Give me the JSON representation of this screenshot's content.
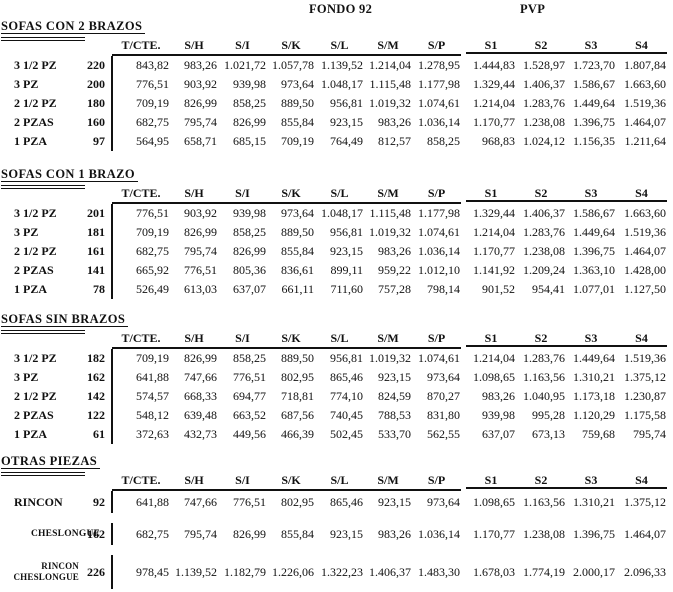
{
  "document": {
    "group_headers": {
      "fondo": "FONDO 92",
      "pvp": "PVP"
    },
    "columns": [
      "T/CTE.",
      "S/H",
      "S/I",
      "S/K",
      "S/L",
      "S/M",
      "S/P",
      "S1",
      "S2",
      "S3",
      "S4"
    ],
    "sections": [
      {
        "title": "SOFAS CON 2 BRAZOS",
        "rows": [
          {
            "label": "3 1/2 PZ",
            "size": "220",
            "values": [
              "843,82",
              "983,26",
              "1.021,72",
              "1.057,78",
              "1.139,52",
              "1.214,04",
              "1.278,95",
              "1.444,83",
              "1.528,97",
              "1.723,70",
              "1.807,84"
            ]
          },
          {
            "label": "3 PZ",
            "size": "200",
            "values": [
              "776,51",
              "903,92",
              "939,98",
              "973,64",
              "1.048,17",
              "1.115,48",
              "1.177,98",
              "1.329,44",
              "1.406,37",
              "1.586,67",
              "1.663,60"
            ]
          },
          {
            "label": "2 1/2 PZ",
            "size": "180",
            "values": [
              "709,19",
              "826,99",
              "858,25",
              "889,50",
              "956,81",
              "1.019,32",
              "1.074,61",
              "1.214,04",
              "1.283,76",
              "1.449,64",
              "1.519,36"
            ]
          },
          {
            "label": "2 PZAS",
            "size": "160",
            "values": [
              "682,75",
              "795,74",
              "826,99",
              "855,84",
              "923,15",
              "983,26",
              "1.036,14",
              "1.170,77",
              "1.238,08",
              "1.396,75",
              "1.464,07"
            ]
          },
          {
            "label": "1 PZA",
            "size": "97",
            "values": [
              "564,95",
              "658,71",
              "685,15",
              "709,19",
              "764,49",
              "812,57",
              "858,25",
              "968,83",
              "1.024,12",
              "1.156,35",
              "1.211,64"
            ]
          }
        ]
      },
      {
        "title": "SOFAS CON 1 BRAZO",
        "rows": [
          {
            "label": "3 1/2 PZ",
            "size": "201",
            "values": [
              "776,51",
              "903,92",
              "939,98",
              "973,64",
              "1.048,17",
              "1.115,48",
              "1.177,98",
              "1.329,44",
              "1.406,37",
              "1.586,67",
              "1.663,60"
            ]
          },
          {
            "label": "3 PZ",
            "size": "181",
            "values": [
              "709,19",
              "826,99",
              "858,25",
              "889,50",
              "956,81",
              "1.019,32",
              "1.074,61",
              "1.214,04",
              "1.283,76",
              "1.449,64",
              "1.519,36"
            ]
          },
          {
            "label": "2 1/2 PZ",
            "size": "161",
            "values": [
              "682,75",
              "795,74",
              "826,99",
              "855,84",
              "923,15",
              "983,26",
              "1.036,14",
              "1.170,77",
              "1.238,08",
              "1.396,75",
              "1.464,07"
            ]
          },
          {
            "label": "2 PZAS",
            "size": "141",
            "values": [
              "665,92",
              "776,51",
              "805,36",
              "836,61",
              "899,11",
              "959,22",
              "1.012,10",
              "1.141,92",
              "1.209,24",
              "1.363,10",
              "1.428,00"
            ]
          },
          {
            "label": "1 PZA",
            "size": "78",
            "values": [
              "526,49",
              "613,03",
              "637,07",
              "661,11",
              "711,60",
              "757,28",
              "798,14",
              "901,52",
              "954,41",
              "1.077,01",
              "1.127,50"
            ]
          }
        ]
      },
      {
        "title": "SOFAS SIN BRAZOS",
        "rows": [
          {
            "label": "3 1/2 PZ",
            "size": "182",
            "values": [
              "709,19",
              "826,99",
              "858,25",
              "889,50",
              "956,81",
              "1.019,32",
              "1.074,61",
              "1.214,04",
              "1.283,76",
              "1.449,64",
              "1.519,36"
            ]
          },
          {
            "label": "3 PZ",
            "size": "162",
            "values": [
              "641,88",
              "747,66",
              "776,51",
              "802,95",
              "865,46",
              "923,15",
              "973,64",
              "1.098,65",
              "1.163,56",
              "1.310,21",
              "1.375,12"
            ]
          },
          {
            "label": "2 1/2 PZ",
            "size": "142",
            "values": [
              "574,57",
              "668,33",
              "694,77",
              "718,81",
              "774,10",
              "824,59",
              "870,27",
              "983,26",
              "1.040,95",
              "1.173,18",
              "1.230,87"
            ]
          },
          {
            "label": "2 PZAS",
            "size": "122",
            "values": [
              "548,12",
              "639,48",
              "663,52",
              "687,56",
              "740,45",
              "788,53",
              "831,80",
              "939,98",
              "995,28",
              "1.120,29",
              "1.175,58"
            ]
          },
          {
            "label": "1 PZA",
            "size": "61",
            "values": [
              "372,63",
              "432,73",
              "449,56",
              "466,39",
              "502,45",
              "533,70",
              "562,55",
              "637,07",
              "673,13",
              "759,68",
              "795,74"
            ]
          }
        ]
      },
      {
        "title": "OTRAS PIEZAS",
        "rows": [
          {
            "label": "RINCON",
            "size": "92",
            "values": [
              "641,88",
              "747,66",
              "776,51",
              "802,95",
              "865,46",
              "923,15",
              "973,64",
              "1.098,65",
              "1.163,56",
              "1.310,21",
              "1.375,12"
            ]
          },
          {
            "label": "CHESLONGUE",
            "size": "162",
            "values": [
              "682,75",
              "795,74",
              "826,99",
              "855,84",
              "923,15",
              "983,26",
              "1.036,14",
              "1.170,77",
              "1.238,08",
              "1.396,75",
              "1.464,07"
            ]
          },
          {
            "label": "RINCON\nCHESLONGUE",
            "size": "226",
            "values": [
              "978,45",
              "1.139,52",
              "1.182,79",
              "1.226,06",
              "1.322,23",
              "1.406,37",
              "1.483,30",
              "1.678,03",
              "1.774,19",
              "2.000,17",
              "2.096,33"
            ]
          }
        ]
      }
    ]
  }
}
